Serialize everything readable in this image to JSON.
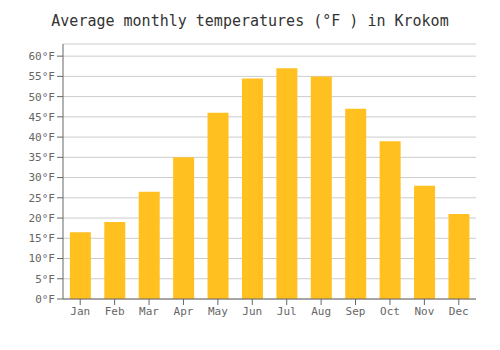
{
  "chart_data": {
    "type": "bar",
    "title": "Average monthly temperatures (°F ) in Krokom",
    "categories": [
      "Jan",
      "Feb",
      "Mar",
      "Apr",
      "May",
      "Jun",
      "Jul",
      "Aug",
      "Sep",
      "Oct",
      "Nov",
      "Dec"
    ],
    "values": [
      16.5,
      19.0,
      26.5,
      35.0,
      46.0,
      54.5,
      57.0,
      55.0,
      47.0,
      39.0,
      28.0,
      21.0
    ],
    "color": "#FFC020",
    "ylim": [
      0,
      63
    ],
    "yticks": [
      {
        "value": 0,
        "label": "0°F"
      },
      {
        "value": 5,
        "label": "5°F"
      },
      {
        "value": 10,
        "label": "10°F"
      },
      {
        "value": 15,
        "label": "15°F"
      },
      {
        "value": 20,
        "label": "20°F"
      },
      {
        "value": 25,
        "label": "25°F"
      },
      {
        "value": 30,
        "label": "30°F"
      },
      {
        "value": 35,
        "label": "35°F"
      },
      {
        "value": 40,
        "label": "40°F"
      },
      {
        "value": 45,
        "label": "45°F"
      },
      {
        "value": 50,
        "label": "50°F"
      },
      {
        "value": 55,
        "label": "55°F"
      },
      {
        "value": 60,
        "label": "60°F"
      }
    ],
    "grid": true
  }
}
